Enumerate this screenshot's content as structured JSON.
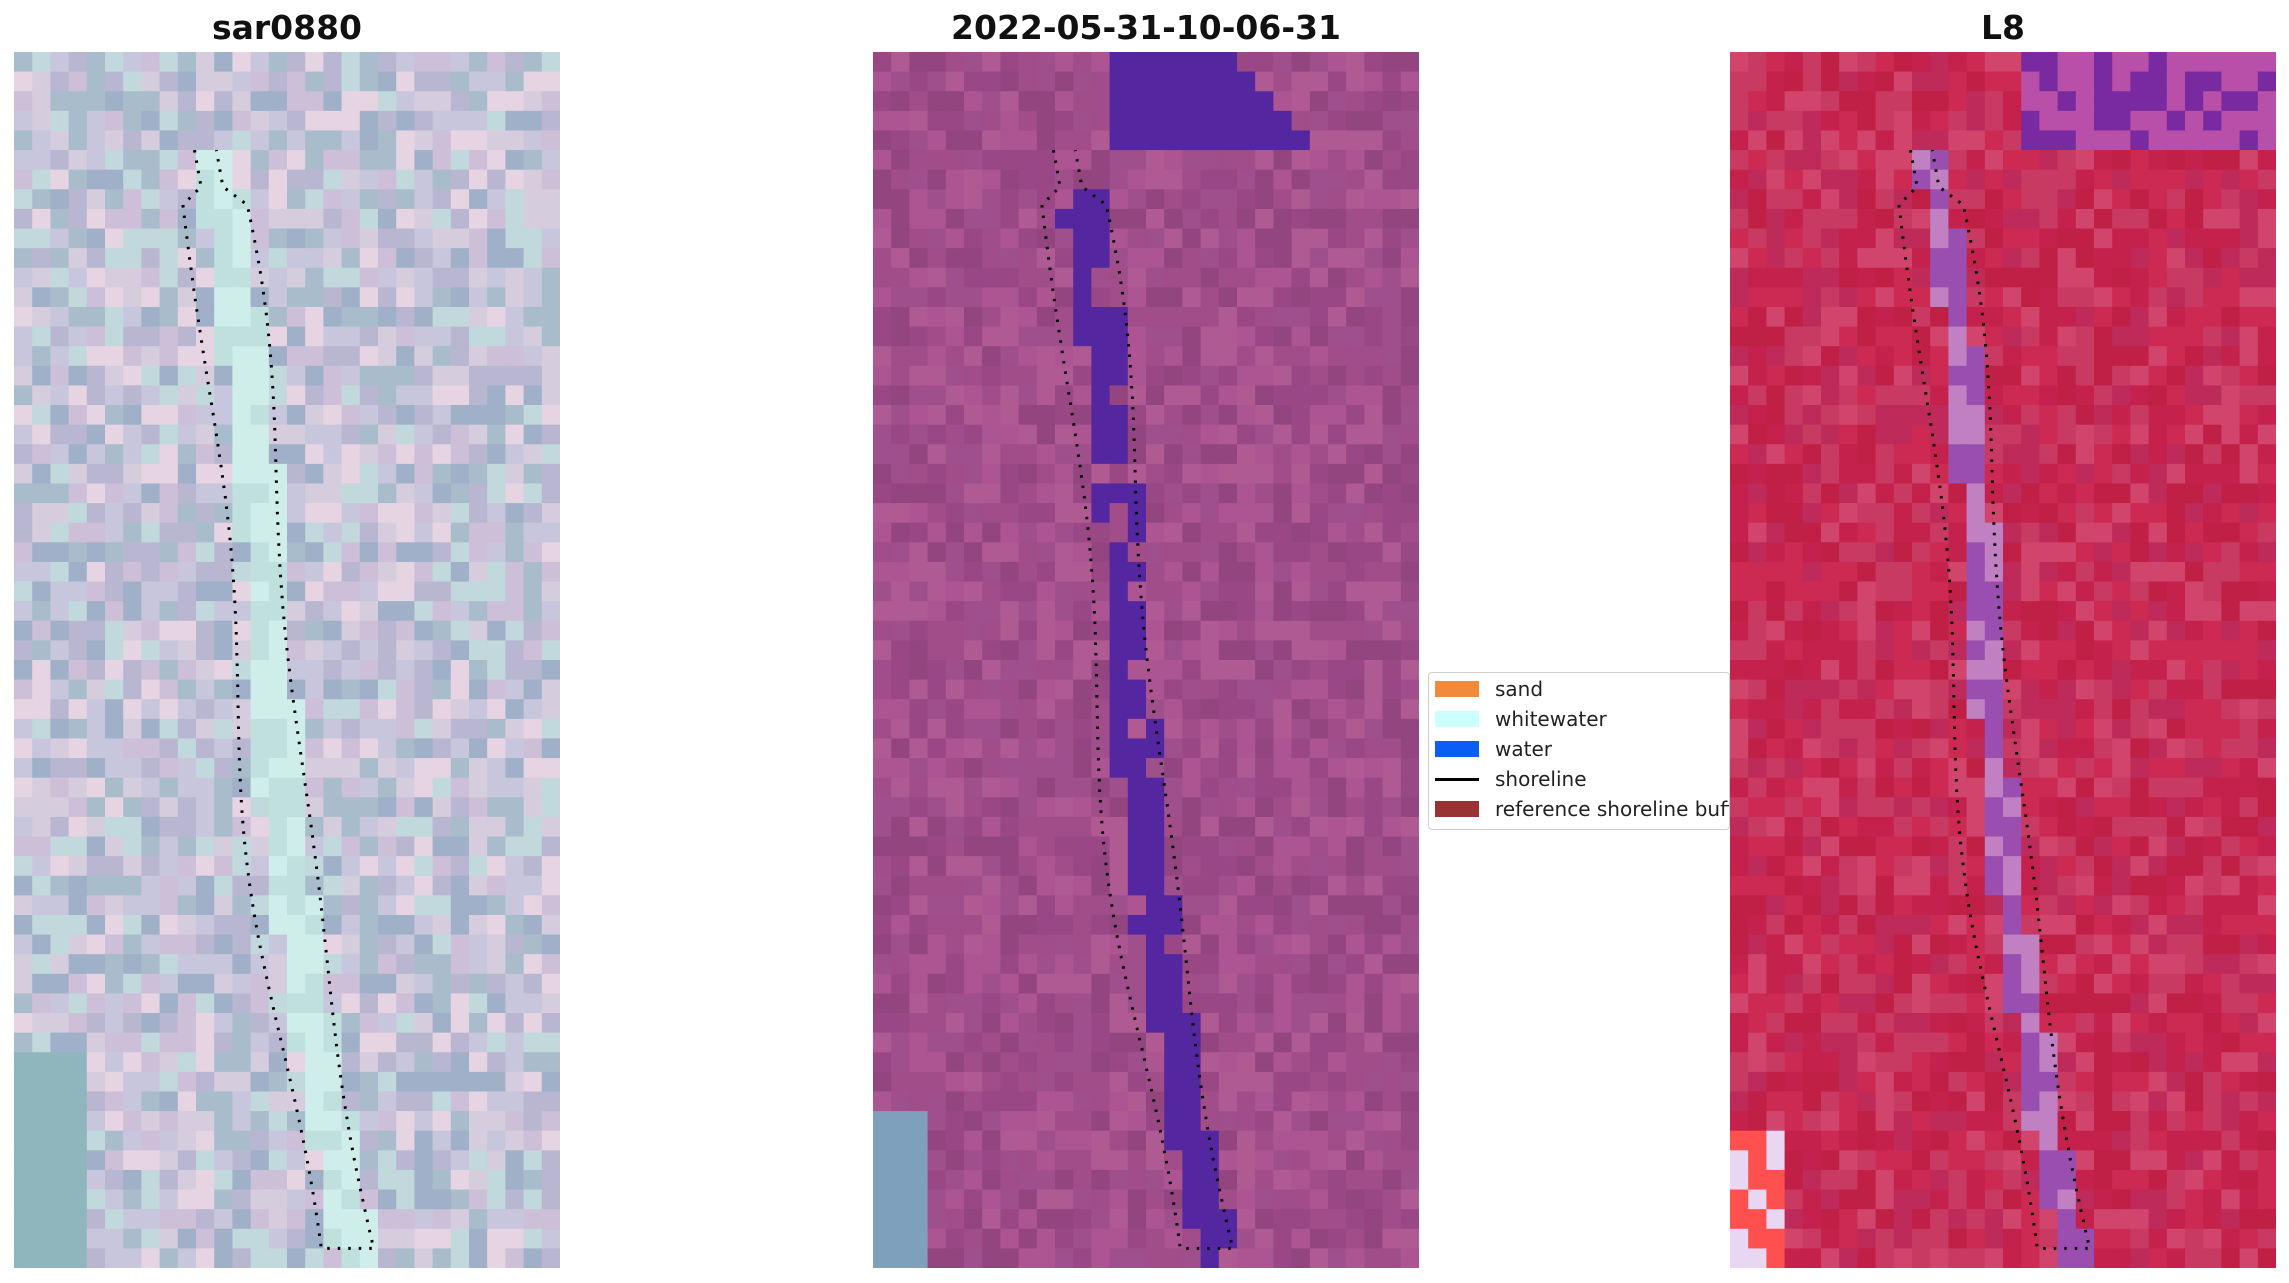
{
  "panels": [
    {
      "title": "sar0880",
      "palette": [
        "#c8c6dc",
        "#b9b6d2",
        "#d5ccde",
        "#a9bccb",
        "#c1d8dc",
        "#e6d4e2",
        "#9fb0c8",
        "#cdbfd8"
      ],
      "accent": "#cfeeea"
    },
    {
      "title": "2022-05-31-10-06-31",
      "palette": [
        "#a14d8a",
        "#9a4786",
        "#ac5592",
        "#93457f",
        "#b05a94",
        "#a04f8d"
      ],
      "accent": "#5426a0"
    },
    {
      "title": "L8",
      "palette": [
        "#c4214d",
        "#cc2a52",
        "#be2a59",
        "#c93a62",
        "#d1456c",
        "#c01f46"
      ],
      "accent": "#9a4fb0"
    }
  ],
  "legend": {
    "items": [
      {
        "label": "sand",
        "color": "#f28a3c",
        "kind": "patch"
      },
      {
        "label": "whitewater",
        "color": "#ccffff",
        "kind": "patch"
      },
      {
        "label": "water",
        "color": "#0a5ff2",
        "kind": "patch"
      },
      {
        "label": "shoreline",
        "color": "#000000",
        "kind": "line"
      },
      {
        "label": "reference shoreline buffer",
        "color": "#993333",
        "kind": "patch"
      }
    ]
  }
}
